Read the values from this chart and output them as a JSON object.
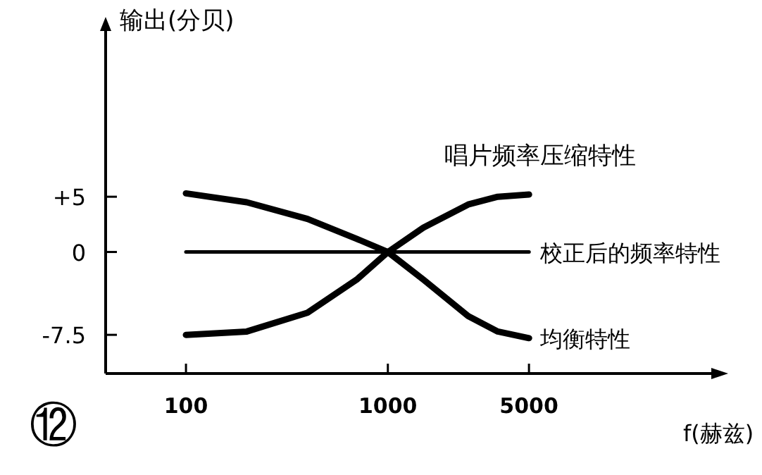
{
  "chart_data": {
    "type": "line",
    "ylabel": "输出(分贝)",
    "xlabel": "f(赫兹)",
    "log": "x",
    "xlim": [
      40,
      40000
    ],
    "xticks": [
      100,
      1000,
      5000
    ],
    "ylim": [
      -11,
      20
    ],
    "yticks": [
      {
        "value": 5,
        "label": "+5"
      },
      0,
      -7.5
    ],
    "grid": false,
    "marker": "none",
    "line_style": "solid",
    "annotations": [
      "⑫"
    ],
    "series": [
      {
        "name": "唱片频率压缩特性",
        "color": "#000000",
        "x": [
          100,
          200,
          400,
          700,
          1000,
          1500,
          2500,
          3500,
          5000
        ],
        "values": [
          -7.5,
          -7.2,
          -5.5,
          -2.5,
          0,
          2.2,
          4.3,
          5,
          5.2
        ]
      },
      {
        "name": "校正后的频率特性",
        "color": "#000000",
        "x": [
          100,
          5000
        ],
        "values": [
          0,
          0
        ]
      },
      {
        "name": "均衡特性",
        "color": "#000000",
        "x": [
          100,
          200,
          400,
          700,
          1000,
          1500,
          2500,
          3500,
          5000
        ],
        "values": [
          5.3,
          4.5,
          3,
          1.2,
          0,
          -2.5,
          -5.8,
          -7.2,
          -7.8
        ]
      }
    ]
  }
}
